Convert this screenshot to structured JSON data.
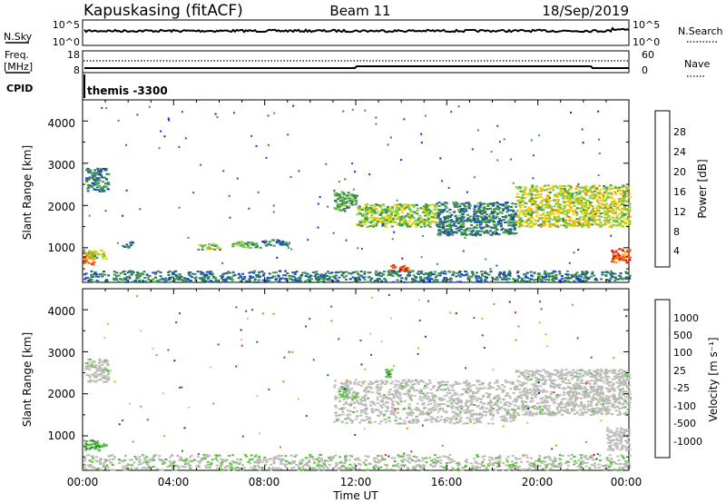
{
  "header": {
    "station": "Kapuskasing (fitACF)",
    "beam": "Beam 11",
    "date": "18/Sep/2019"
  },
  "panels": {
    "noise": {
      "left_label": "N.Sky",
      "right_label": "N.Search",
      "left_ticks": [
        "10^5",
        "10^0"
      ],
      "right_ticks": [
        "10^5",
        "10^0"
      ]
    },
    "freq": {
      "left_label_line1": "Freq.",
      "left_label_line2": "[MHz]",
      "right_label": "Nave",
      "left_ticks": [
        "18",
        "8"
      ],
      "right_ticks": [
        "60",
        "0"
      ]
    },
    "cpid": {
      "label": "CPID",
      "program": "themis -3300"
    }
  },
  "x_axis": {
    "label": "Time UT",
    "ticks": [
      "00:00",
      "04:00",
      "08:00",
      "12:00",
      "16:00",
      "20:00",
      "00:00"
    ]
  },
  "power_panel": {
    "ylabel": "Slant Range [km]",
    "yticks": [
      "4000",
      "3000",
      "2000",
      "1000"
    ],
    "colorbar_label": "Power [dB]",
    "colorbar_ticks": [
      "28",
      "24",
      "20",
      "16",
      "12",
      "8",
      "4"
    ]
  },
  "velocity_panel": {
    "ylabel": "Slant Range [km]",
    "yticks": [
      "4000",
      "3000",
      "2000",
      "1000"
    ],
    "colorbar_label": "Velocity [m s⁻¹]",
    "colorbar_ticks": [
      "1000",
      "500",
      "100",
      "25",
      "-25",
      "-100",
      "-500",
      "-1000"
    ]
  },
  "colors": {
    "power_scale": [
      "#0a22e6",
      "#1f4fb8",
      "#2f7a55",
      "#3b9a45",
      "#7fce3a",
      "#f0d000",
      "#f09a00",
      "#f06000",
      "#e01010"
    ],
    "velocity_scale": [
      "#1030c8",
      "#205a9a",
      "#2f7a3f",
      "#5cc040",
      "#c0c0c0",
      "#c0c0c0",
      "#f0b000",
      "#f08000",
      "#e02020"
    ],
    "ground_scatter": "#b8b8b0"
  },
  "chart_data": [
    {
      "type": "heatmap",
      "title": "Power [dB]",
      "xlabel": "Time UT",
      "ylabel": "Slant Range [km]",
      "xlim": [
        0,
        24
      ],
      "ylim": [
        180,
        4500
      ],
      "color_scale": [
        0,
        30
      ],
      "echo_regions": [
        {
          "t0": 0.0,
          "t1": 0.45,
          "r0": 600,
          "r1": 900,
          "level": 26
        },
        {
          "t0": 0.0,
          "t1": 1.0,
          "r0": 750,
          "r1": 950,
          "level": 16
        },
        {
          "t0": 0.1,
          "t1": 1.1,
          "r0": 2350,
          "r1": 2900,
          "level": 8
        },
        {
          "t0": 1.7,
          "t1": 2.2,
          "r0": 1000,
          "r1": 1150,
          "level": 8
        },
        {
          "t0": 5.0,
          "t1": 6.0,
          "r0": 950,
          "r1": 1100,
          "level": 14
        },
        {
          "t0": 6.5,
          "t1": 7.8,
          "r0": 1000,
          "r1": 1150,
          "level": 12
        },
        {
          "t0": 7.8,
          "t1": 9.0,
          "r0": 1050,
          "r1": 1200,
          "level": 8
        },
        {
          "t0": 11.0,
          "t1": 12.0,
          "r0": 1900,
          "r1": 2350,
          "level": 12
        },
        {
          "t0": 12.0,
          "t1": 15.5,
          "r0": 1500,
          "r1": 2050,
          "level": 15
        },
        {
          "t0": 15.5,
          "t1": 19.0,
          "r0": 1300,
          "r1": 2100,
          "level": 9
        },
        {
          "t0": 19.0,
          "t1": 24.0,
          "r0": 1500,
          "r1": 2500,
          "level": 17
        },
        {
          "t0": 13.4,
          "t1": 14.3,
          "r0": 450,
          "r1": 600,
          "level": 24
        },
        {
          "t0": 23.2,
          "t1": 24.0,
          "r0": 650,
          "r1": 1000,
          "level": 26
        },
        {
          "t0": 0.0,
          "t1": 24.0,
          "r0": 180,
          "r1": 450,
          "level": 8
        }
      ]
    },
    {
      "type": "heatmap",
      "title": "Velocity [m s⁻¹]",
      "xlabel": "Time UT",
      "ylabel": "Slant Range [km]",
      "xlim": [
        0,
        24
      ],
      "ylim": [
        180,
        4500
      ],
      "color_scale": [
        -1000,
        1000
      ],
      "echo_regions": [
        {
          "t0": 0.0,
          "t1": 1.0,
          "r0": 650,
          "r1": 900,
          "level": -300
        },
        {
          "t0": 0.1,
          "t1": 1.1,
          "r0": 2300,
          "r1": 2850,
          "level": 0
        },
        {
          "t0": 11.0,
          "t1": 19.0,
          "r0": 1300,
          "r1": 2350,
          "level": 0
        },
        {
          "t0": 19.0,
          "t1": 24.0,
          "r0": 1500,
          "r1": 2600,
          "level": 0
        },
        {
          "t0": 11.2,
          "t1": 12.0,
          "r0": 1900,
          "r1": 2150,
          "level": -120
        },
        {
          "t0": 13.2,
          "t1": 13.6,
          "r0": 2400,
          "r1": 2600,
          "level": -300
        },
        {
          "t0": 23.0,
          "t1": 24.0,
          "r0": 650,
          "r1": 1200,
          "level": 120
        },
        {
          "t0": 0.0,
          "t1": 24.0,
          "r0": 180,
          "r1": 550,
          "level": -50
        }
      ]
    }
  ]
}
